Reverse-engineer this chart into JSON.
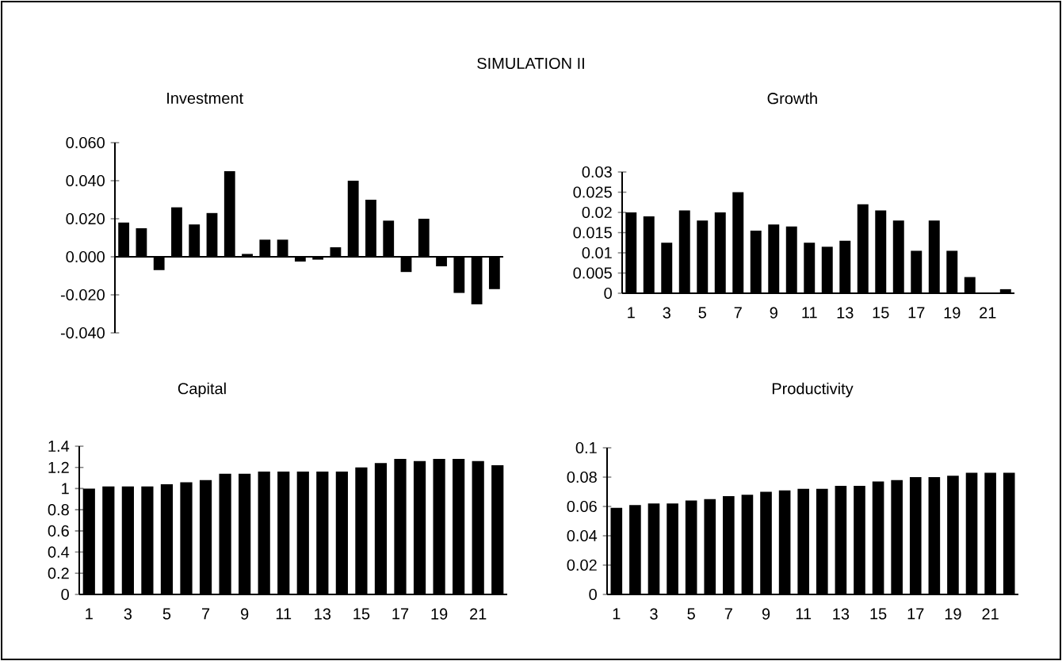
{
  "chart_data": [
    {
      "type": "other",
      "title": "SIMULATION II"
    },
    {
      "type": "bar",
      "title": "Investment",
      "color": "#000000",
      "tick_labels": "y",
      "categories": [
        null,
        null,
        null,
        null,
        null,
        null,
        null,
        null,
        null,
        null,
        null,
        null,
        null,
        null,
        null,
        null,
        null,
        null,
        null,
        null,
        null,
        null
      ],
      "values": [
        0.018,
        0.015,
        -0.007,
        0.026,
        0.017,
        0.023,
        0.045,
        0.0015,
        0.009,
        0.009,
        -0.0025,
        -0.0015,
        0.005,
        0.04,
        0.03,
        0.019,
        -0.008,
        0.02,
        -0.005,
        -0.019,
        -0.025,
        -0.017
      ],
      "ylim": [
        -0.04,
        0.06
      ],
      "yticks": [
        {
          "value": -0.04,
          "label": "-0.040"
        },
        {
          "value": -0.02,
          "label": "-0.020"
        },
        {
          "value": 0,
          "label": "0.000"
        },
        {
          "value": 0.02,
          "label": "0.020"
        },
        {
          "value": 0.04,
          "label": "0.040"
        },
        {
          "value": 0.06,
          "label": "0.060"
        }
      ]
    },
    {
      "type": "bar",
      "title": "Growth",
      "color": "#000000",
      "categories": [
        "1",
        null,
        "3",
        null,
        "5",
        null,
        "7",
        null,
        "9",
        null,
        "11",
        null,
        "13",
        null,
        "15",
        null,
        "17",
        null,
        "19",
        null,
        "21",
        null
      ],
      "values": [
        0.02,
        0.019,
        0.0125,
        0.0205,
        0.018,
        0.02,
        0.025,
        0.0155,
        0.017,
        0.0165,
        0.0125,
        0.0115,
        0.013,
        0.022,
        0.0205,
        0.018,
        0.0105,
        0.018,
        0.0105,
        0.004,
        null,
        0.001
      ],
      "ylim": [
        0,
        0.03
      ],
      "yticks": [
        0,
        0.005,
        0.01,
        0.015,
        0.02,
        0.025,
        0.03
      ]
    },
    {
      "type": "bar",
      "title": "Capital",
      "color": "#000000",
      "categories": [
        "1",
        null,
        "3",
        null,
        "5",
        null,
        "7",
        null,
        "9",
        null,
        "11",
        null,
        "13",
        null,
        "15",
        null,
        "17",
        null,
        "19",
        null,
        "21",
        null
      ],
      "values": [
        1.0,
        1.02,
        1.02,
        1.02,
        1.04,
        1.06,
        1.08,
        1.14,
        1.14,
        1.16,
        1.16,
        1.16,
        1.16,
        1.16,
        1.2,
        1.24,
        1.28,
        1.26,
        1.28,
        1.28,
        1.26,
        1.22
      ],
      "ylim": [
        0,
        1.4
      ],
      "yticks": [
        0,
        0.2,
        0.4,
        0.6,
        0.8,
        1,
        1.2,
        1.4
      ]
    },
    {
      "type": "bar",
      "title": "Productivity",
      "color": "#000000",
      "categories": [
        "1",
        null,
        "3",
        null,
        "5",
        null,
        "7",
        null,
        "9",
        null,
        "11",
        null,
        "13",
        null,
        "15",
        null,
        "17",
        null,
        "19",
        null,
        "21",
        null
      ],
      "values": [
        0.059,
        0.061,
        0.062,
        0.062,
        0.064,
        0.065,
        0.067,
        0.068,
        0.07,
        0.071,
        0.072,
        0.072,
        0.074,
        0.074,
        0.077,
        0.078,
        0.08,
        0.08,
        0.081,
        0.083,
        0.083,
        0.083
      ],
      "ylim": [
        0,
        0.1
      ],
      "yticks": [
        0,
        0.02,
        0.04,
        0.06,
        0.08,
        0.1
      ]
    }
  ]
}
